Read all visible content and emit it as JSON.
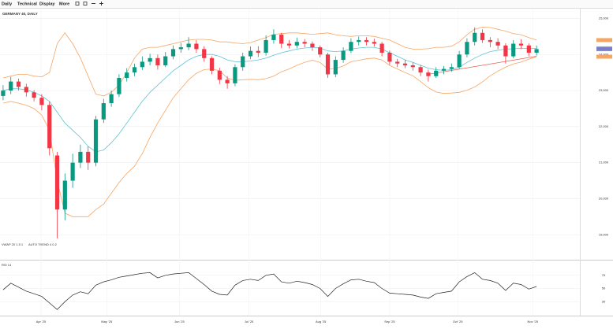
{
  "toolbar": {
    "items": [
      "Daily",
      "Technical",
      "Display",
      "More"
    ]
  },
  "chart_data": [
    {
      "type": "candlestick",
      "title": "GERMANY 40, DAILY",
      "open": [
        22850,
        23000,
        23250,
        23100,
        22950,
        22800,
        22600,
        21200,
        19700,
        20500,
        21000,
        21300,
        21000,
        22200,
        22650,
        22900,
        23350,
        23500,
        23650,
        23800,
        23900,
        23700,
        23950,
        24150,
        24200,
        24300,
        24150,
        23900,
        23550,
        23300,
        23200,
        23650,
        23950,
        24100,
        24050,
        24400,
        24550,
        24300,
        24250,
        24350,
        24300,
        24200,
        24000,
        23450,
        23850,
        24100,
        24350,
        24400,
        24350,
        24300,
        24050,
        23800,
        23750,
        23700,
        23650,
        23500,
        23400,
        23550,
        23600,
        23650,
        24000,
        24350,
        24600,
        24400,
        24350,
        24250,
        23950,
        24300,
        24250,
        24050
      ],
      "high": [
        23150,
        23380,
        23330,
        23190,
        23010,
        22900,
        22700,
        21300,
        20700,
        21250,
        21500,
        21450,
        22300,
        22770,
        23000,
        23450,
        23620,
        23750,
        23950,
        24020,
        24000,
        24070,
        24250,
        24320,
        24480,
        24400,
        24230,
        23950,
        23630,
        23400,
        23730,
        24050,
        24220,
        24230,
        24530,
        24700,
        24600,
        24400,
        24470,
        24430,
        24360,
        24250,
        24050,
        23950,
        24200,
        24450,
        24500,
        24480,
        24440,
        24350,
        24110,
        23880,
        23850,
        23780,
        23710,
        23580,
        23650,
        23680,
        23750,
        24100,
        24450,
        24750,
        24700,
        24480,
        24450,
        24310,
        24400,
        24420,
        24310,
        24250
      ],
      "low": [
        22730,
        22900,
        23000,
        22830,
        22700,
        22450,
        21200,
        18900,
        19400,
        20300,
        20850,
        20800,
        20900,
        22100,
        22550,
        22820,
        23250,
        23400,
        23570,
        23700,
        23580,
        23650,
        23870,
        24050,
        24120,
        24050,
        23800,
        23450,
        23180,
        23050,
        23120,
        23550,
        23870,
        23930,
        23970,
        24300,
        24180,
        24170,
        24170,
        24200,
        24100,
        23920,
        23350,
        23370,
        23770,
        24040,
        24250,
        24250,
        24220,
        23950,
        23720,
        23650,
        23620,
        23550,
        23400,
        23250,
        23350,
        23450,
        23520,
        23600,
        23920,
        24250,
        24320,
        24200,
        24150,
        23750,
        23900,
        24150,
        23950,
        23970
      ],
      "close": [
        23000,
        23250,
        23100,
        22950,
        22800,
        22600,
        21400,
        19700,
        20500,
        21000,
        21300,
        21000,
        22200,
        22650,
        22900,
        23350,
        23500,
        23650,
        23800,
        23900,
        23700,
        23950,
        24150,
        24200,
        24300,
        24150,
        23900,
        23550,
        23300,
        23200,
        23650,
        23950,
        24100,
        24050,
        24400,
        24550,
        24300,
        24250,
        24350,
        24300,
        24200,
        24000,
        23450,
        23850,
        24100,
        24350,
        24400,
        24350,
        24300,
        24050,
        23800,
        23750,
        23700,
        23650,
        23500,
        23400,
        23550,
        23600,
        23650,
        24000,
        24350,
        24600,
        24400,
        24350,
        24250,
        23950,
        24300,
        24250,
        24050,
        24150
      ],
      "up_color": "#089981",
      "down_color": "#f23645",
      "lines": [
        {
          "color": "#5cc4d6",
          "values": [
            23000,
            23050,
            23050,
            23020,
            22950,
            22850,
            22700,
            22400,
            22100,
            21900,
            21700,
            21450,
            21300,
            21350,
            21550,
            21800,
            22100,
            22400,
            22700,
            22950,
            23150,
            23350,
            23550,
            23700,
            23850,
            23950,
            24000,
            24000,
            23950,
            23850,
            23800,
            23800,
            23820,
            23850,
            23900,
            23980,
            24050,
            24100,
            24150,
            24180,
            24200,
            24180,
            24100,
            24080,
            24100,
            24150,
            24180,
            24200,
            24200,
            24150,
            24050,
            23950,
            23850,
            23780,
            23700,
            23620,
            23580,
            23560,
            23580,
            23650,
            23780,
            23900,
            24000,
            24080,
            24120,
            24150,
            24160,
            24170,
            24170,
            24170
          ]
        },
        {
          "color": "#f6a664",
          "values": [
            23350,
            23400,
            23450,
            23450,
            23400,
            23380,
            23500,
            24300,
            24600,
            24300,
            23900,
            23400,
            22900,
            22850,
            22950,
            23150,
            23500,
            23900,
            24150,
            24200,
            24200,
            24250,
            24300,
            24350,
            24400,
            24420,
            24420,
            24400,
            24350,
            24350,
            24320,
            24300,
            24330,
            24400,
            24470,
            24560,
            24580,
            24600,
            24600,
            24580,
            24560,
            24580,
            24600,
            24550,
            24520,
            24500,
            24520,
            24520,
            24500,
            24450,
            24400,
            24300,
            24200,
            24150,
            24150,
            24160,
            24200,
            24200,
            24230,
            24350,
            24550,
            24700,
            24760,
            24750,
            24700,
            24650,
            24580,
            24550,
            24470,
            24400
          ]
        },
        {
          "color": "#f6a664",
          "values": [
            22650,
            22700,
            22650,
            22590,
            22500,
            22320,
            21900,
            20500,
            19600,
            19500,
            19500,
            19500,
            19700,
            19850,
            20150,
            20450,
            20700,
            20900,
            21250,
            21700,
            22100,
            22450,
            22800,
            23050,
            23300,
            23480,
            23580,
            23600,
            23550,
            23350,
            23280,
            23300,
            23310,
            23300,
            23330,
            23400,
            23520,
            23600,
            23700,
            23780,
            23840,
            23780,
            23600,
            23610,
            23680,
            23800,
            23840,
            23880,
            23900,
            23850,
            23700,
            23600,
            23500,
            23410,
            23250,
            23080,
            22960,
            22920,
            22930,
            22950,
            23010,
            23100,
            23240,
            23410,
            23540,
            23650,
            23740,
            23790,
            23870,
            23940
          ]
        }
      ],
      "trend": {
        "color": "#e8604c",
        "x": [
          55,
          69
        ],
        "values": [
          23450,
          23950
        ]
      },
      "indicators": [
        "VWAP 20 1.5 1",
        "AUTO TREND 4 0.2"
      ],
      "xlim": [
        -0.4,
        74.6
      ],
      "ylim": [
        18350,
        25250
      ],
      "yticks": [
        {
          "value": 19000,
          "label": "19,000"
        },
        {
          "value": 20000,
          "label": "20,000"
        },
        {
          "value": 21000,
          "label": "21,000"
        },
        {
          "value": 22000,
          "label": "22,000"
        },
        {
          "value": 23000,
          "label": "23,000"
        },
        {
          "value": 24000,
          "label": "24,000"
        },
        {
          "value": 25000,
          "label": "25,000"
        }
      ],
      "xticks": [
        {
          "value": 4.9,
          "label": "Apr '25"
        },
        {
          "value": 13.4,
          "label": "May '25"
        },
        {
          "value": 22.8,
          "label": "Jun '25"
        },
        {
          "value": 31.8,
          "label": "Jul '25"
        },
        {
          "value": 41.1,
          "label": "Aug '25"
        },
        {
          "value": 50,
          "label": "Sep '25"
        },
        {
          "value": 58.8,
          "label": "Oct '25"
        },
        {
          "value": 68.5,
          "label": "Nov '25"
        }
      ],
      "grid": true
    },
    {
      "type": "line",
      "title": "RSI 14",
      "color": "#222222",
      "values": [
        48,
        58,
        52,
        46,
        42,
        38,
        28,
        18,
        30,
        40,
        45,
        42,
        55,
        60,
        63,
        67,
        69,
        71,
        73,
        74,
        66,
        70,
        72,
        73,
        74,
        65,
        56,
        46,
        41,
        40,
        55,
        62,
        64,
        62,
        70,
        72,
        60,
        58,
        61,
        59,
        56,
        50,
        38,
        50,
        57,
        63,
        64,
        61,
        59,
        50,
        43,
        42,
        41,
        40,
        37,
        35,
        42,
        44,
        46,
        60,
        68,
        74,
        64,
        62,
        58,
        47,
        58,
        56,
        49,
        53
      ],
      "ylim": [
        10,
        90
      ],
      "yticks": [
        30,
        50,
        70
      ],
      "grid": true
    }
  ]
}
